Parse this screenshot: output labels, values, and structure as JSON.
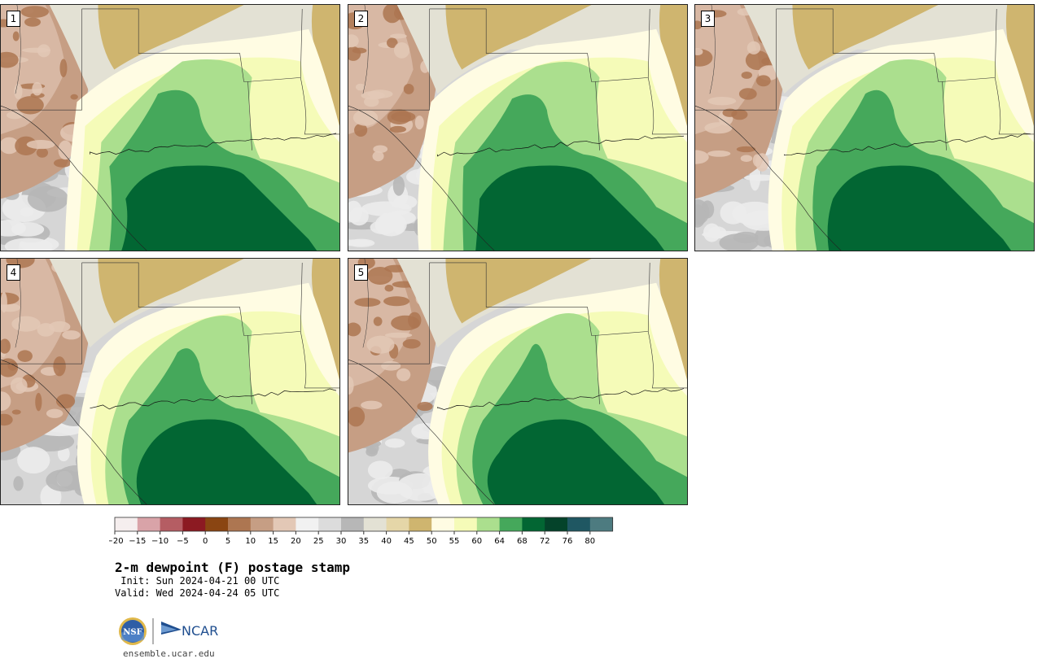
{
  "panels": [
    {
      "label": "1",
      "variant": 0
    },
    {
      "label": "2",
      "variant": 1
    },
    {
      "label": "3",
      "variant": 2
    },
    {
      "label": "4",
      "variant": 3
    },
    {
      "label": "5",
      "variant": 4
    }
  ],
  "colorbar": {
    "ticks": [
      "−20",
      "−15",
      "−10",
      "−5",
      "0",
      "5",
      "10",
      "15",
      "20",
      "25",
      "30",
      "35",
      "40",
      "45",
      "50",
      "55",
      "60",
      "64",
      "68",
      "72",
      "76",
      "80"
    ],
    "colors": [
      "#f5eeee",
      "#d9a3a8",
      "#b55d63",
      "#8c1a22",
      "#8a4512",
      "#ad7651",
      "#c69e84",
      "#e3c8b6",
      "#f1f1f1",
      "#dcdcdc",
      "#b7b7b7",
      "#e3e1d4",
      "#e5d6a8",
      "#cfb56f",
      "#fffce3",
      "#f5fbb8",
      "#abdf8e",
      "#45a85b",
      "#026633",
      "#04432a",
      "#1f5762",
      "#4d7b80"
    ]
  },
  "title": "2-m dewpoint (F) postage stamp",
  "init": " Init: Sun 2024-04-21 00 UTC",
  "valid": "Valid: Wed 2024-04-24 05 UTC",
  "logos": {
    "nsf": "NSF",
    "ncar": "NCAR"
  },
  "site": "ensemble.ucar.edu"
}
